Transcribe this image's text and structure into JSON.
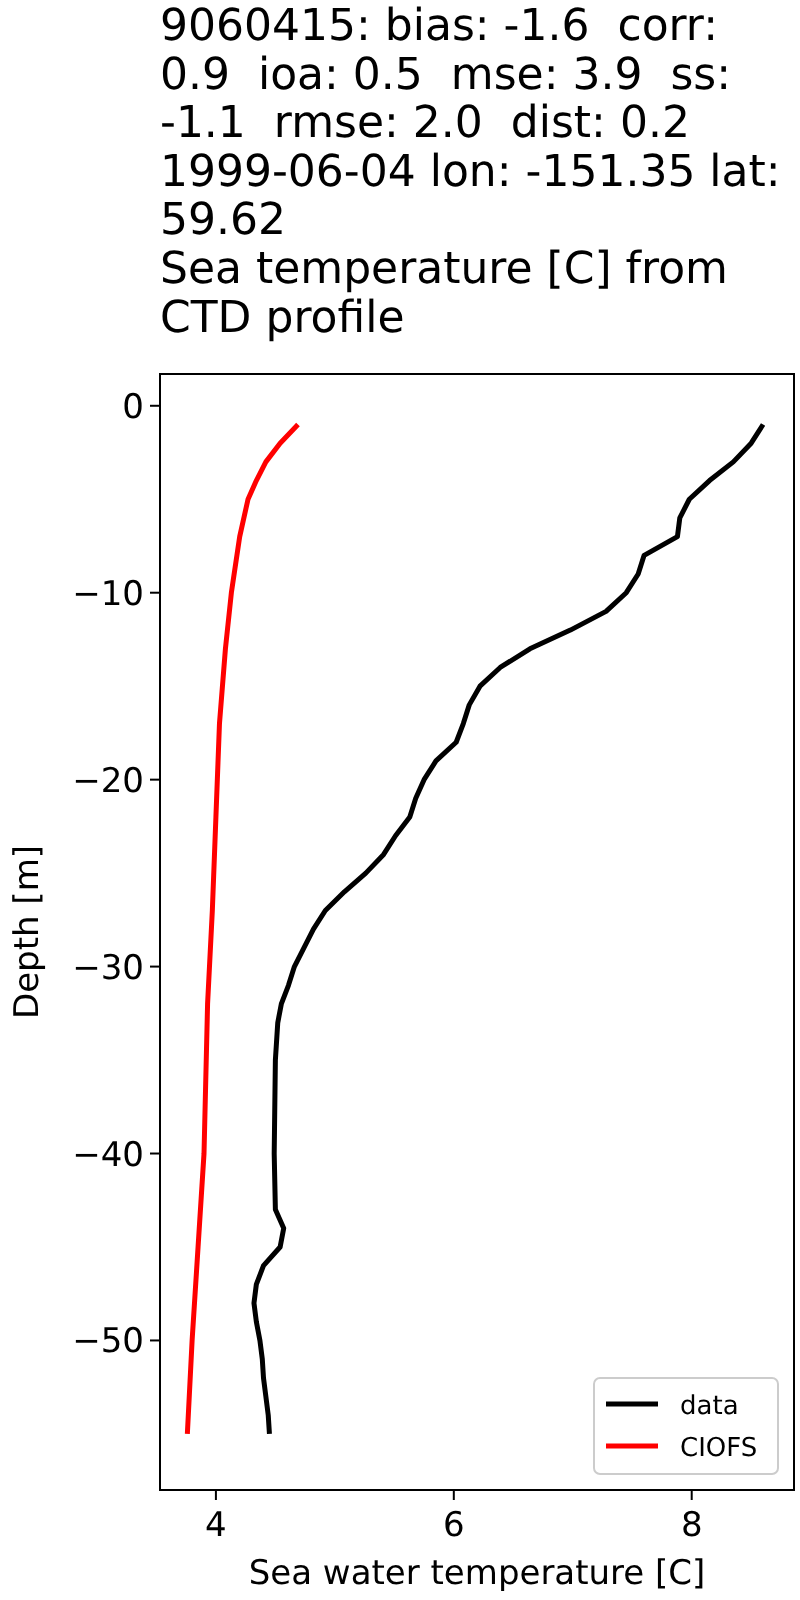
{
  "chart_data": {
    "type": "line",
    "title": "9060415: bias: -1.6  corr:\n0.9  ioa: 0.5  mse: 3.9  ss:\n-1.1  rmse: 2.0  dist: 0.2\n1999-06-04 lon: -151.35 lat:\n59.62\nSea temperature [C] from\nCTD profile",
    "xlabel": "Sea water temperature [C]",
    "ylabel": "Depth [m]",
    "xlim": [
      3.53,
      8.86
    ],
    "xticks": [
      4,
      6,
      8
    ],
    "ylim": [
      -58,
      1.7
    ],
    "yticks": [
      0,
      -10,
      -20,
      -30,
      -40,
      -50
    ],
    "legend": "bottom right",
    "grid": false,
    "marker": "none",
    "line_style": "solid",
    "series": [
      {
        "name": "data",
        "color": "#000000",
        "x": [
          8.6,
          8.5,
          8.35,
          8.15,
          7.98,
          7.9,
          7.88,
          7.6,
          7.55,
          7.45,
          7.28,
          6.98,
          6.64,
          6.39,
          6.22,
          6.13,
          6.08,
          6.02,
          5.85,
          5.75,
          5.68,
          5.63,
          5.51,
          5.41,
          5.26,
          5.08,
          4.92,
          4.82,
          4.74,
          4.66,
          4.61,
          4.55,
          4.52,
          4.5,
          4.49,
          4.5,
          4.57,
          4.54,
          4.4,
          4.34,
          4.32,
          4.34,
          4.37,
          4.39,
          4.4,
          4.42,
          4.44,
          4.45
        ],
        "values": [
          -1,
          -2,
          -3,
          -4,
          -5,
          -6,
          -7,
          -8,
          -9,
          -10,
          -11,
          -12,
          -13,
          -14,
          -15,
          -16,
          -17,
          -18,
          -19,
          -20,
          -21,
          -22,
          -23,
          -24,
          -25,
          -26,
          -27,
          -28,
          -29,
          -30,
          -31,
          -32,
          -33,
          -35,
          -40,
          -43,
          -44,
          -45,
          -46,
          -47,
          -48,
          -49,
          -50,
          -51,
          -52,
          -53,
          -54,
          -55
        ]
      },
      {
        "name": "CIOFS",
        "color": "#ff0000",
        "x": [
          4.69,
          4.54,
          4.42,
          4.34,
          4.27,
          4.2,
          4.13,
          4.08,
          4.03,
          4.0,
          3.97,
          3.93,
          3.9,
          3.85,
          3.8,
          3.76
        ],
        "values": [
          -1,
          -2,
          -3,
          -4,
          -5,
          -7,
          -10,
          -13,
          -17,
          -22,
          -27,
          -32,
          -40,
          -45,
          -50,
          -55
        ]
      }
    ]
  }
}
